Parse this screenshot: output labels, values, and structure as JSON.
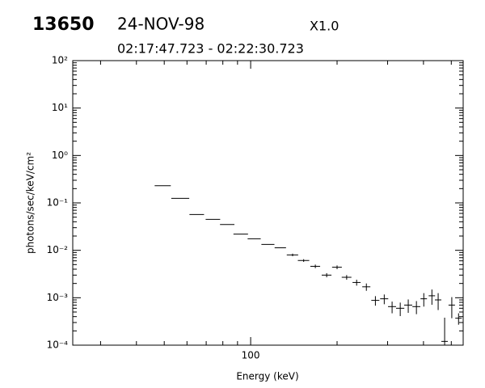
{
  "chart_data": {
    "type": "scatter",
    "header": {
      "event": "13650",
      "date": "24-NOV-98",
      "scale": "X1.0",
      "time_range": "02:17:47.723 - 02:22:30.723"
    },
    "x_label": "Energy (keV)",
    "y_label": "photons/sec/keV/cm²",
    "log_x": true,
    "log_y": true,
    "color": "#000000",
    "xlim": [
      24,
      550
    ],
    "xticks": [
      100
    ],
    "xminorticks": [
      30,
      40,
      50,
      60,
      70,
      80,
      90,
      200,
      300,
      400,
      500
    ],
    "ylim": [
      0.0001,
      100
    ],
    "yticks": [
      {
        "value": 0.0001,
        "label": "10⁻⁴"
      },
      {
        "value": 0.001,
        "label": "10⁻³"
      },
      {
        "value": 0.01,
        "label": "10⁻²"
      },
      {
        "value": 0.1,
        "label": "10⁻¹"
      },
      {
        "value": 1,
        "label": "10⁰"
      },
      {
        "value": 10,
        "label": "10¹"
      },
      {
        "value": 100,
        "label": "10²"
      }
    ],
    "yminorticks": [
      0.0002,
      0.0003,
      0.0004,
      0.0005,
      0.0006,
      0.0007,
      0.0008,
      0.0009,
      0.002,
      0.003,
      0.004,
      0.005,
      0.006,
      0.007,
      0.008,
      0.009,
      0.02,
      0.03,
      0.04,
      0.05,
      0.06,
      0.07,
      0.08,
      0.09,
      0.2,
      0.3,
      0.4,
      0.5,
      0.6,
      0.7,
      0.8,
      0.9,
      2,
      3,
      4,
      5,
      6,
      7,
      8,
      9,
      20,
      30,
      40,
      50,
      60,
      70,
      80,
      90
    ],
    "x": [
      49.5,
      57,
      65,
      74,
      83,
      92.5,
      103,
      115,
      127,
      140,
      153,
      168,
      184,
      200,
      216,
      234,
      253,
      272,
      292,
      311,
      332,
      354,
      378,
      401,
      428,
      450,
      474,
      502,
      530
    ],
    "xerr": [
      3.2,
      4.1,
      3.8,
      4.3,
      4.8,
      5.4,
      5.4,
      6,
      5.8,
      6.4,
      7,
      6.6,
      7.2,
      7.8,
      8.4,
      7.6,
      8.2,
      8.8,
      9.5,
      10,
      11,
      11.5,
      12,
      10.4,
      11,
      11.7,
      12.3,
      13,
      13.8
    ],
    "values": [
      0.23,
      0.125,
      0.057,
      0.045,
      0.035,
      0.022,
      0.0175,
      0.0133,
      0.0113,
      0.008,
      0.0061,
      0.0046,
      0.003,
      0.0044,
      0.0027,
      0.0021,
      0.0017,
      0.00088,
      0.00095,
      0.00065,
      0.0006,
      0.0007,
      0.00065,
      0.00095,
      0.0011,
      0.0009,
      0.00012,
      0.0007,
      0.00037
    ],
    "yerr": [
      0,
      0,
      0,
      0,
      0,
      0,
      0,
      0,
      0,
      0.0005,
      0.0004,
      0.0004,
      0.0003,
      0.0004,
      0.0003,
      0.0003,
      0.0003,
      0.0002,
      0.00022,
      0.00018,
      0.00019,
      0.00022,
      0.0002,
      0.0003,
      0.00039,
      0.00035,
      0.00026,
      0.00033,
      0.0001
    ]
  }
}
